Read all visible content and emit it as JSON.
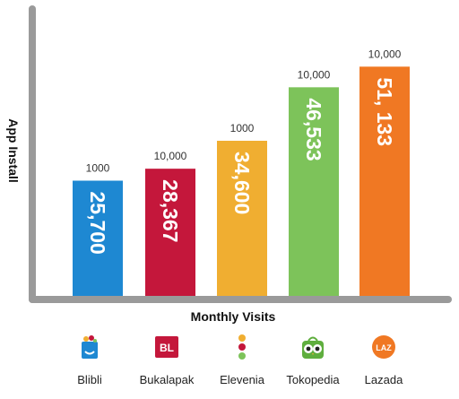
{
  "chart_data": {
    "type": "bar",
    "xlabel": "Monthly Visits",
    "ylabel": "App Install",
    "categories": [
      "Blibli",
      "Bukalapak",
      "Elevenia",
      "Tokopedia",
      "Lazada"
    ],
    "values": [
      25700,
      28367,
      34600,
      46533,
      51133
    ],
    "bar_labels": [
      "25,700",
      "28,367",
      "34,600",
      "46,533",
      "51, 133"
    ],
    "top_labels": [
      "1000",
      "10,000",
      "1000",
      "10,000",
      "10,000"
    ],
    "colors": [
      "#1e88d2",
      "#c4173b",
      "#f0ae31",
      "#7dc35a",
      "#f07823"
    ],
    "grid": false,
    "legend": "none"
  },
  "logos": [
    {
      "name": "Blibli",
      "icon": "blibli-bag-icon"
    },
    {
      "name": "Bukalapak",
      "icon": "bukalapak-bl-icon"
    },
    {
      "name": "Elevenia",
      "icon": "elevenia-dots-icon"
    },
    {
      "name": "Tokopedia",
      "icon": "tokopedia-owl-icon"
    },
    {
      "name": "Lazada",
      "icon": "lazada-laz-icon"
    }
  ],
  "logo_texts": {
    "bukalapak": "BL",
    "lazada": "LAZ"
  }
}
